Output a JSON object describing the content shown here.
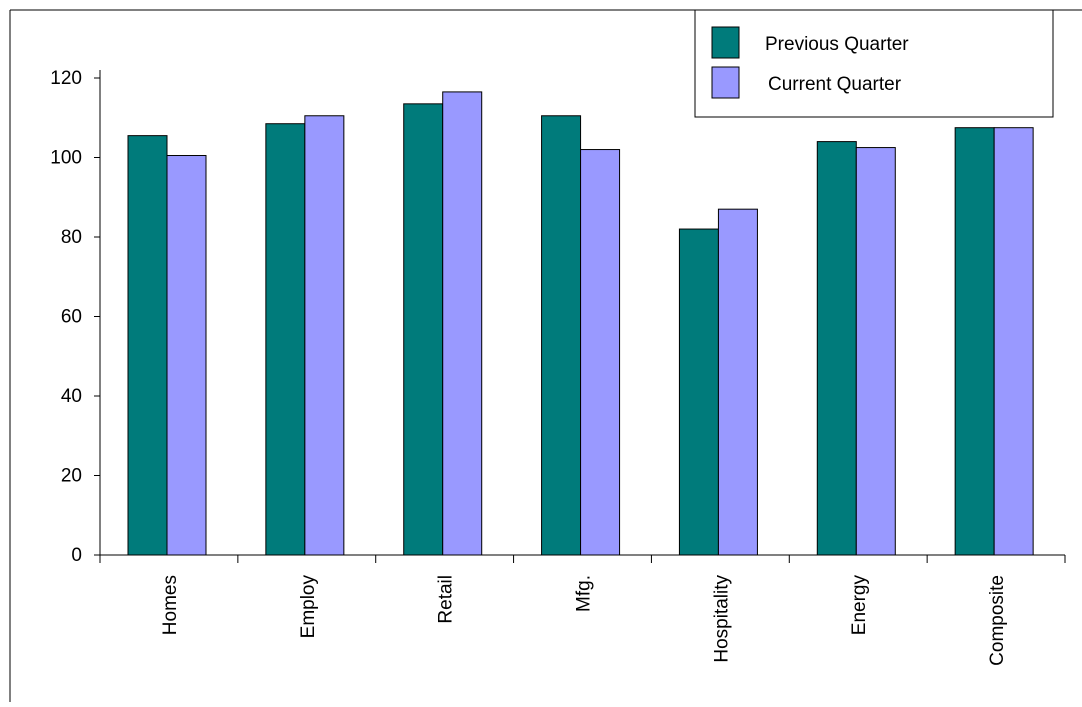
{
  "chart_data": {
    "type": "bar",
    "categories": [
      "Homes",
      "Employ",
      "Retail",
      "Mfg.",
      "Hospitality",
      "Energy",
      "Composite"
    ],
    "series": [
      {
        "name": "Previous Quarter",
        "color": "#007b7b",
        "values": [
          105.5,
          108.5,
          113.5,
          110.5,
          82,
          104,
          107.5
        ]
      },
      {
        "name": "Current Quarter",
        "color": "#9999ff",
        "values": [
          100.5,
          110.5,
          116.5,
          102,
          87,
          102.5,
          107.5
        ]
      }
    ],
    "yticks": [
      0,
      20,
      40,
      60,
      80,
      100,
      120
    ],
    "ylim": [
      0,
      130
    ],
    "title": "",
    "xlabel": "",
    "ylabel": "",
    "grid": false,
    "legend_position": "top-right"
  }
}
